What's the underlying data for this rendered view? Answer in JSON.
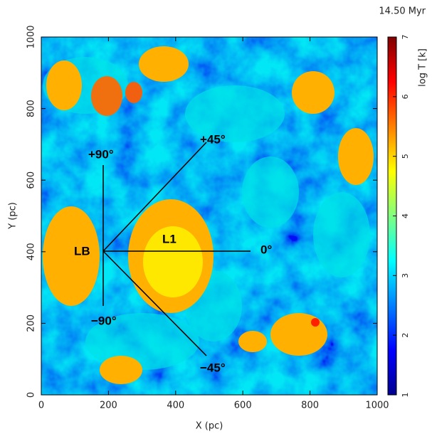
{
  "chart_data": {
    "type": "heatmap",
    "title": "14.50 Myr",
    "xlabel": "X (pc)",
    "ylabel": "Y (pc)",
    "xlim": [
      0,
      1000
    ],
    "ylim": [
      0,
      1000
    ],
    "xticks": [
      0,
      200,
      400,
      600,
      800,
      1000
    ],
    "yticks": [
      0,
      200,
      400,
      600,
      800,
      1000
    ],
    "colorbar_label": "log T [k]",
    "clim": [
      1,
      7
    ],
    "colorbar_ticks": [
      1,
      2,
      3,
      4,
      5,
      6,
      7
    ],
    "colormap": "jet",
    "annotations": [
      "LB",
      "L1",
      "+90°",
      "+45°",
      "0°",
      "−45°",
      "−90°"
    ]
  }
}
